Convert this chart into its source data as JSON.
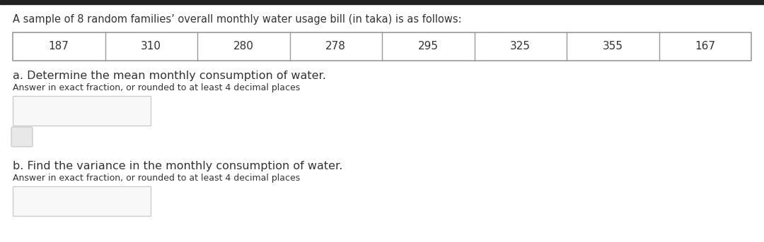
{
  "title": "A sample of 8 random families’ overall monthly water usage bill (in taka) is as follows:",
  "table_values": [
    "187",
    "310",
    "280",
    "278",
    "295",
    "325",
    "355",
    "167"
  ],
  "question_a_bold": "a. Determine the mean monthly consumption of water.",
  "question_a_sub": "Answer in exact fraction, or rounded to at least 4 decimal places",
  "question_b_bold": "b. Find the variance in the monthly consumption of water.",
  "question_b_sub": "Answer in exact fraction, or rounded to at least 4 decimal places",
  "bg_color": "#ffffff",
  "top_bar_color": "#222222",
  "table_border_color": "#999999",
  "table_bg_color": "#ffffff",
  "text_color": "#333333",
  "input_box_color": "#f8f8f8",
  "input_box_border": "#cccccc",
  "small_btn_color": "#e8e8e8",
  "small_btn_border": "#cccccc",
  "title_fontsize": 10.5,
  "question_fontsize": 11.5,
  "sub_fontsize": 9,
  "table_fontsize": 11
}
